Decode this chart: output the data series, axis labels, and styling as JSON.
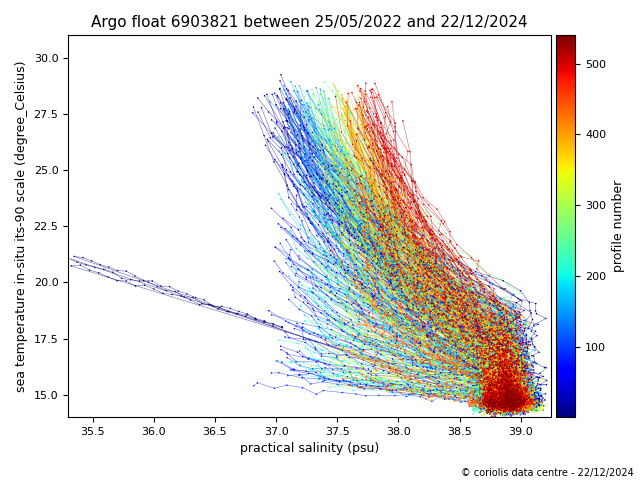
{
  "title": "Argo float 6903821 between 25/05/2022 and 22/12/2024",
  "xlabel": "practical salinity (psu)",
  "ylabel": "sea temperature in-situ its-90 scale (degree_Celsius)",
  "colorbar_label": "profile number",
  "colorbar_ticks": [
    100,
    200,
    300,
    400,
    500
  ],
  "xlim": [
    35.3,
    39.25
  ],
  "ylim": [
    14.0,
    31.0
  ],
  "xticks": [
    35.5,
    36.0,
    36.5,
    37.0,
    37.5,
    38.0,
    38.5,
    39.0
  ],
  "yticks": [
    15.0,
    17.5,
    20.0,
    22.5,
    25.0,
    27.5,
    30.0
  ],
  "n_profiles": 540,
  "copyright": "© coriolis data centre - 22/12/2024",
  "cmap": "jet",
  "vmin": 1,
  "vmax": 540,
  "background_color": "#ffffff",
  "title_fontsize": 11,
  "label_fontsize": 9
}
